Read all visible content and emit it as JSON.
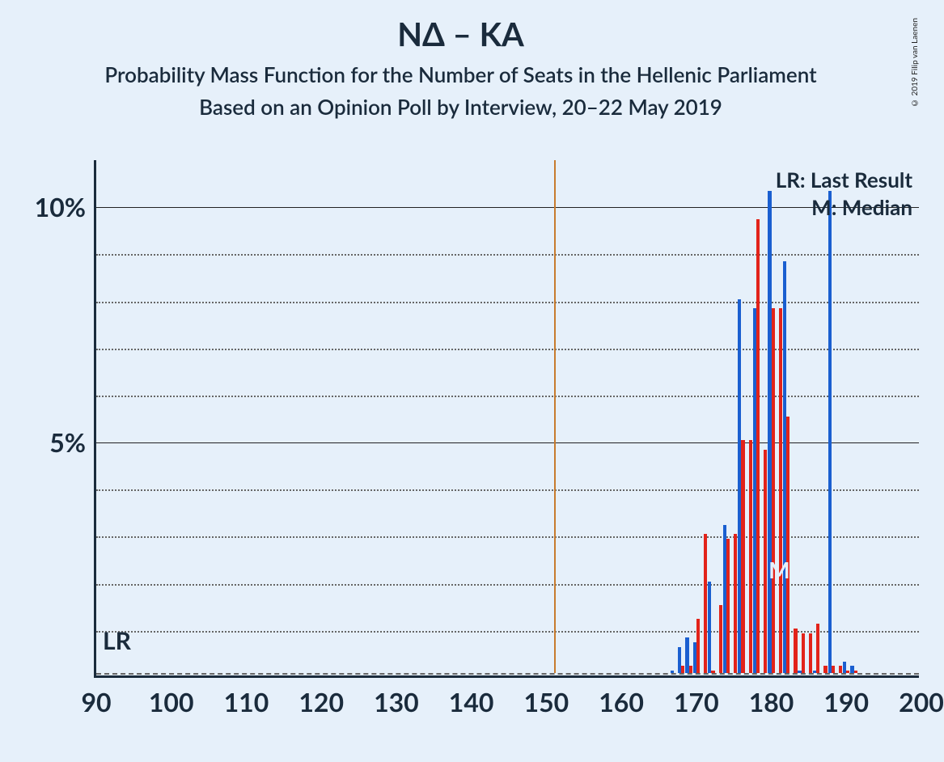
{
  "title": "ΝΔ – ΚΑ",
  "subtitle1": "Probability Mass Function for the Number of Seats in the Hellenic Parliament",
  "subtitle2": "Based on an Opinion Poll by Interview, 20–22 May 2019",
  "copyright": "© 2019 Filip van Laenen",
  "legend": {
    "lr": "LR: Last Result",
    "m": "M: Median"
  },
  "annotations": {
    "lr_label": "LR",
    "m_label": "M",
    "lr_x": 151,
    "m_x": 182
  },
  "chart": {
    "type": "bar",
    "xlim": [
      90,
      200
    ],
    "ylim": [
      0,
      11
    ],
    "xtick_step": 10,
    "xticks": [
      90,
      100,
      110,
      120,
      130,
      140,
      150,
      160,
      170,
      180,
      190,
      200
    ],
    "ytick_major": [
      5,
      10
    ],
    "ytick_minor": [
      1,
      2,
      3,
      4,
      6,
      7,
      8,
      9
    ],
    "ytick_labels": {
      "5": "5%",
      "10": "10%"
    },
    "background_color": "#e6f0fa",
    "axis_color": "#1a2b3c",
    "grid_major_color": "#222222",
    "grid_minor_color": "#666666",
    "colors": {
      "blue": "#1a5fd0",
      "red": "#e2231a"
    },
    "bar_width_units": 0.45,
    "series": [
      {
        "x": 167,
        "blue": 0.1,
        "red": 0.0
      },
      {
        "x": 168,
        "blue": 0.6,
        "red": 0.2
      },
      {
        "x": 169,
        "blue": 0.8,
        "red": 0.2
      },
      {
        "x": 170,
        "blue": 0.7,
        "red": 1.2
      },
      {
        "x": 171,
        "blue": 0.0,
        "red": 3.0
      },
      {
        "x": 172,
        "blue": 2.0,
        "red": 0.1
      },
      {
        "x": 173,
        "blue": 0.0,
        "red": 1.5
      },
      {
        "x": 174,
        "blue": 3.2,
        "red": 2.9
      },
      {
        "x": 175,
        "blue": 0.0,
        "red": 3.0
      },
      {
        "x": 176,
        "blue": 8.0,
        "red": 5.0
      },
      {
        "x": 177,
        "blue": 0.0,
        "red": 5.0
      },
      {
        "x": 178,
        "blue": 7.8,
        "red": 9.7
      },
      {
        "x": 179,
        "blue": 0.0,
        "red": 4.8
      },
      {
        "x": 180,
        "blue": 10.3,
        "red": 7.8
      },
      {
        "x": 181,
        "blue": 0.0,
        "red": 7.8
      },
      {
        "x": 182,
        "blue": 8.8,
        "red": 5.5
      },
      {
        "x": 183,
        "blue": 0.0,
        "red": 1.0
      },
      {
        "x": 184,
        "blue": 0.1,
        "red": 0.9
      },
      {
        "x": 185,
        "blue": 0.0,
        "red": 0.9
      },
      {
        "x": 186,
        "blue": 0.1,
        "red": 1.1
      },
      {
        "x": 187,
        "blue": 0.0,
        "red": 0.2
      },
      {
        "x": 188,
        "blue": 10.3,
        "red": 0.2
      },
      {
        "x": 189,
        "blue": 0.0,
        "red": 0.2
      },
      {
        "x": 190,
        "blue": 0.3,
        "red": 0.1
      },
      {
        "x": 191,
        "blue": 0.2,
        "red": 0.1
      }
    ]
  }
}
